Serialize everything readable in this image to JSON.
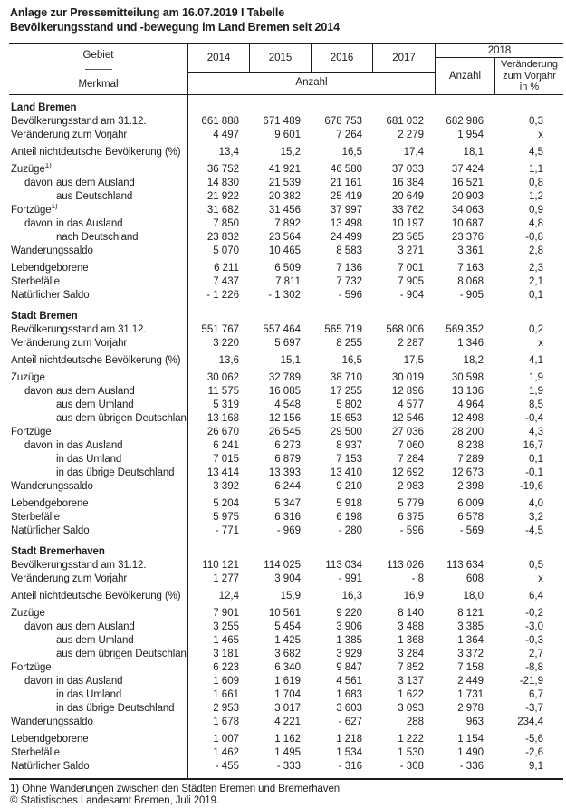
{
  "title": {
    "line1": "Anlage zur Pressemitteilung am 16.07.2019 I Tabelle",
    "line2": "Bevölkerungsstand und -bewegung im Land Bremen seit 2014"
  },
  "table_header": {
    "gebiet": "Gebiet",
    "merkmal": "Merkmal",
    "years": [
      "2014",
      "2015",
      "2016",
      "2017"
    ],
    "anzahl_label": "Anzahl",
    "group_2018": "2018",
    "anzahl_2018": "Anzahl",
    "change_lines": [
      "Veränderung",
      "zum Vorjahr",
      "in %"
    ]
  },
  "colors": {
    "text": "#1c1c1c",
    "border": "#1c1c1c",
    "background": "#ffffff"
  },
  "sections": [
    {
      "name": "Land Bremen",
      "rows": [
        {
          "label": "Bevölkerungsstand am 31.12.",
          "values": [
            "661 888",
            "671 489",
            "678 753",
            "681 032",
            "682 986",
            "0,3"
          ]
        },
        {
          "label": "Veränderung zum Vorjahr",
          "values": [
            "4 497",
            "9 601",
            "7 264",
            "2 279",
            "1 954",
            "x"
          ]
        },
        {
          "label": "Anteil nichtdeutsche Bevölkerung (%)",
          "gap_before": true,
          "values": [
            "13,4",
            "15,2",
            "16,5",
            "17,4",
            "18,1",
            "4,5"
          ]
        },
        {
          "label": "Zuzüge",
          "sup": "1)",
          "gap_before": true,
          "values": [
            "36 752",
            "41 921",
            "46 580",
            "37 033",
            "37 424",
            "1,1"
          ]
        },
        {
          "label": "aus dem Ausland",
          "prefix": "davon",
          "values": [
            "14 830",
            "21 539",
            "21 161",
            "16 384",
            "16 521",
            "0,8"
          ]
        },
        {
          "label": "aus Deutschland",
          "indent": 2,
          "values": [
            "21 922",
            "20 382",
            "25 419",
            "20 649",
            "20 903",
            "1,2"
          ]
        },
        {
          "label": "Fortzüge",
          "sup": "1)",
          "values": [
            "31 682",
            "31 456",
            "37 997",
            "33 762",
            "34 063",
            "0,9"
          ]
        },
        {
          "label": "in das Ausland",
          "prefix": "davon",
          "values": [
            "7 850",
            "7 892",
            "13 498",
            "10 197",
            "10 687",
            "4,8"
          ]
        },
        {
          "label": "nach Deutschland",
          "indent": 2,
          "values": [
            "23 832",
            "23 564",
            "24 499",
            "23 565",
            "23 376",
            "-0,8"
          ]
        },
        {
          "label": "Wanderungssaldo",
          "values": [
            "5 070",
            "10 465",
            "8 583",
            "3 271",
            "3 361",
            "2,8"
          ]
        },
        {
          "label": "Lebendgeborene",
          "gap_before": true,
          "values": [
            "6 211",
            "6 509",
            "7 136",
            "7 001",
            "7 163",
            "2,3"
          ]
        },
        {
          "label": "Sterbefälle",
          "values": [
            "7 437",
            "7 811",
            "7 732",
            "7 905",
            "8 068",
            "2,1"
          ]
        },
        {
          "label": "Natürlicher Saldo",
          "values": [
            "- 1 226",
            "- 1 302",
            "- 596",
            "- 904",
            "- 905",
            "0,1"
          ]
        }
      ]
    },
    {
      "name": "Stadt Bremen",
      "rows": [
        {
          "label": "Bevölkerungsstand am 31.12.",
          "values": [
            "551 767",
            "557 464",
            "565 719",
            "568 006",
            "569 352",
            "0,2"
          ]
        },
        {
          "label": "Veränderung zum Vorjahr",
          "values": [
            "3 220",
            "5 697",
            "8 255",
            "2 287",
            "1 346",
            "x"
          ]
        },
        {
          "label": "Anteil nichtdeutsche Bevölkerung (%)",
          "gap_before": true,
          "values": [
            "13,6",
            "15,1",
            "16,5",
            "17,5",
            "18,2",
            "4,1"
          ]
        },
        {
          "label": "Zuzüge",
          "gap_before": true,
          "values": [
            "30 062",
            "32 789",
            "38 710",
            "30 019",
            "30 598",
            "1,9"
          ]
        },
        {
          "label": "aus dem Ausland",
          "prefix": "davon",
          "values": [
            "11 575",
            "16 085",
            "17 255",
            "12 896",
            "13 136",
            "1,9"
          ]
        },
        {
          "label": "aus dem Umland",
          "indent": 2,
          "values": [
            "5 319",
            "4 548",
            "5 802",
            "4 577",
            "4 964",
            "8,5"
          ]
        },
        {
          "label": "aus dem übrigen Deutschland",
          "indent": 2,
          "values": [
            "13 168",
            "12 156",
            "15 653",
            "12 546",
            "12 498",
            "-0,4"
          ]
        },
        {
          "label": "Fortzüge",
          "values": [
            "26 670",
            "26 545",
            "29 500",
            "27 036",
            "28 200",
            "4,3"
          ]
        },
        {
          "label": "in das Ausland",
          "prefix": "davon",
          "values": [
            "6 241",
            "6 273",
            "8 937",
            "7 060",
            "8 238",
            "16,7"
          ]
        },
        {
          "label": "in das Umland",
          "indent": 2,
          "values": [
            "7 015",
            "6 879",
            "7 153",
            "7 284",
            "7 289",
            "0,1"
          ]
        },
        {
          "label": "in das übrige Deutschland",
          "indent": 2,
          "values": [
            "13 414",
            "13 393",
            "13 410",
            "12 692",
            "12 673",
            "-0,1"
          ]
        },
        {
          "label": "Wanderungssaldo",
          "values": [
            "3 392",
            "6 244",
            "9 210",
            "2 983",
            "2 398",
            "-19,6"
          ]
        },
        {
          "label": "Lebendgeborene",
          "gap_before": true,
          "values": [
            "5 204",
            "5 347",
            "5 918",
            "5 779",
            "6 009",
            "4,0"
          ]
        },
        {
          "label": "Sterbefälle",
          "values": [
            "5 975",
            "6 316",
            "6 198",
            "6 375",
            "6 578",
            "3,2"
          ]
        },
        {
          "label": "Natürlicher Saldo",
          "values": [
            "- 771",
            "- 969",
            "- 280",
            "- 596",
            "- 569",
            "-4,5"
          ]
        }
      ]
    },
    {
      "name": "Stadt Bremerhaven",
      "rows": [
        {
          "label": "Bevölkerungsstand am 31.12.",
          "values": [
            "110 121",
            "114 025",
            "113 034",
            "113 026",
            "113 634",
            "0,5"
          ]
        },
        {
          "label": "Veränderung zum Vorjahr",
          "values": [
            "1 277",
            "3 904",
            "- 991",
            "- 8",
            "608",
            "x"
          ]
        },
        {
          "label": "Anteil nichtdeutsche Bevölkerung (%)",
          "gap_before": true,
          "values": [
            "12,4",
            "15,9",
            "16,3",
            "16,9",
            "18,0",
            "6,4"
          ]
        },
        {
          "label": "Zuzüge",
          "gap_before": true,
          "values": [
            "7 901",
            "10 561",
            "9 220",
            "8 140",
            "8 121",
            "-0,2"
          ]
        },
        {
          "label": "aus dem Ausland",
          "prefix": "davon",
          "values": [
            "3 255",
            "5 454",
            "3 906",
            "3 488",
            "3 385",
            "-3,0"
          ]
        },
        {
          "label": "aus dem Umland",
          "indent": 2,
          "values": [
            "1 465",
            "1 425",
            "1 385",
            "1 368",
            "1 364",
            "-0,3"
          ]
        },
        {
          "label": "aus dem übrigen Deutschland",
          "indent": 2,
          "values": [
            "3 181",
            "3 682",
            "3 929",
            "3 284",
            "3 372",
            "2,7"
          ]
        },
        {
          "label": "Fortzüge",
          "values": [
            "6 223",
            "6 340",
            "9 847",
            "7 852",
            "7 158",
            "-8,8"
          ]
        },
        {
          "label": "in das Ausland",
          "prefix": "davon",
          "values": [
            "1 609",
            "1 619",
            "4 561",
            "3 137",
            "2 449",
            "-21,9"
          ]
        },
        {
          "label": "in das Umland",
          "indent": 2,
          "values": [
            "1 661",
            "1 704",
            "1 683",
            "1 622",
            "1 731",
            "6,7"
          ]
        },
        {
          "label": "in das übrige Deutschland",
          "indent": 2,
          "values": [
            "2 953",
            "3 017",
            "3 603",
            "3 093",
            "2 978",
            "-3,7"
          ]
        },
        {
          "label": "Wanderungssaldo",
          "values": [
            "1 678",
            "4 221",
            "- 627",
            "288",
            "963",
            "234,4"
          ]
        },
        {
          "label": "Lebendgeborene",
          "gap_before": true,
          "values": [
            "1 007",
            "1 162",
            "1 218",
            "1 222",
            "1 154",
            "-5,6"
          ]
        },
        {
          "label": "Sterbefälle",
          "values": [
            "1 462",
            "1 495",
            "1 534",
            "1 530",
            "1 490",
            "-2,6"
          ]
        },
        {
          "label": "Natürlicher Saldo",
          "values": [
            "- 455",
            "- 333",
            "- 316",
            "- 308",
            "- 336",
            "9,1"
          ]
        }
      ]
    }
  ],
  "footnotes": {
    "note1": "1) Ohne Wanderungen zwischen den Städten Bremen und Bremerhaven",
    "copyright": "© Statistisches Landesamt Bremen, Juli 2019."
  }
}
